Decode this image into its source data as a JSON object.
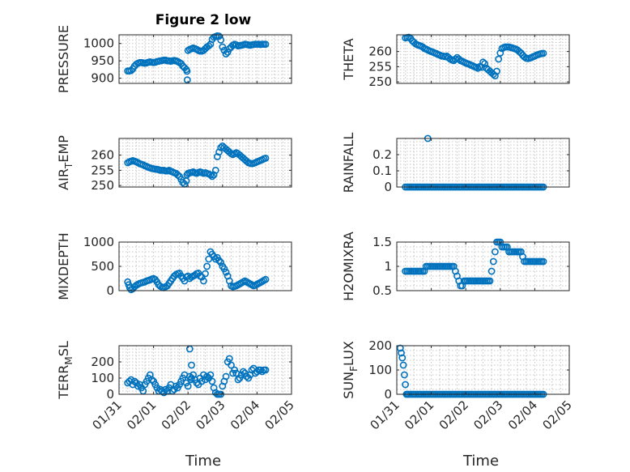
{
  "figure": {
    "title": "Figure 2 low"
  },
  "colors": {
    "marker": "#0072bd",
    "axis": "#262626",
    "grid": "#c6c6c6"
  },
  "x_axis": {
    "label": "Time",
    "ticks": [
      "01/31",
      "02/01",
      "02/02",
      "02/03",
      "02/04",
      "02/05"
    ],
    "tick_values": [
      0,
      1,
      2,
      3,
      4,
      5
    ],
    "range": [
      0,
      5
    ]
  },
  "chart_data": [
    {
      "type": "scatter",
      "ylabel": "PRESSURE",
      "ylim": [
        885,
        1025
      ],
      "yticks": [
        900,
        950,
        1000
      ],
      "grid": true,
      "x": [
        0.25,
        0.3,
        0.35,
        0.4,
        0.45,
        0.5,
        0.55,
        0.6,
        0.65,
        0.7,
        0.75,
        0.8,
        0.85,
        0.9,
        0.95,
        1.0,
        1.05,
        1.1,
        1.15,
        1.2,
        1.25,
        1.3,
        1.35,
        1.4,
        1.45,
        1.5,
        1.55,
        1.6,
        1.65,
        1.7,
        1.75,
        1.8,
        1.85,
        1.9,
        1.95,
        1.97,
        1.98,
        2.0,
        2.05,
        2.1,
        2.15,
        2.2,
        2.25,
        2.3,
        2.35,
        2.4,
        2.45,
        2.5,
        2.55,
        2.6,
        2.65,
        2.7,
        2.75,
        2.8,
        2.85,
        2.9,
        2.95,
        3.0,
        3.05,
        3.1,
        3.15,
        3.2,
        3.25,
        3.3,
        3.35,
        3.4,
        3.45,
        3.5,
        3.55,
        3.6,
        3.65,
        3.7,
        3.75,
        3.8,
        3.85,
        3.9,
        3.95,
        4.0,
        4.05,
        4.1,
        4.15,
        4.2,
        4.25
      ],
      "y": [
        921,
        921,
        922,
        927,
        935,
        940,
        943,
        945,
        945,
        944,
        943,
        944,
        946,
        947,
        946,
        945,
        946,
        948,
        949,
        950,
        951,
        952,
        952,
        950,
        950,
        949,
        950,
        951,
        950,
        948,
        945,
        942,
        935,
        930,
        925,
        920,
        895,
        980,
        983,
        985,
        987,
        985,
        983,
        980,
        978,
        978,
        980,
        985,
        990,
        993,
        998,
        1012,
        1018,
        1020,
        1022,
        1021,
        1010,
        990,
        980,
        970,
        975,
        985,
        990,
        995,
        998,
        996,
        993,
        994,
        995,
        996,
        998,
        997,
        996,
        995,
        996,
        997,
        998,
        998,
        998,
        997,
        998,
        998,
        998
      ],
      "y2": []
    },
    {
      "type": "scatter",
      "ylabel": "THETA",
      "ylim": [
        249.5,
        265.5
      ],
      "yticks": [
        250,
        255,
        260
      ],
      "grid": true,
      "x": [
        0.25,
        0.3,
        0.35,
        0.4,
        0.45,
        0.5,
        0.55,
        0.6,
        0.65,
        0.7,
        0.75,
        0.8,
        0.85,
        0.9,
        0.95,
        1.0,
        1.05,
        1.1,
        1.15,
        1.2,
        1.25,
        1.3,
        1.35,
        1.4,
        1.45,
        1.5,
        1.55,
        1.6,
        1.65,
        1.7,
        1.75,
        1.8,
        1.85,
        1.9,
        1.95,
        2.0,
        2.05,
        2.1,
        2.15,
        2.2,
        2.25,
        2.3,
        2.35,
        2.4,
        2.45,
        2.5,
        2.55,
        2.6,
        2.65,
        2.7,
        2.75,
        2.8,
        2.85,
        2.9,
        2.95,
        3.0,
        3.05,
        3.1,
        3.15,
        3.2,
        3.25,
        3.3,
        3.35,
        3.4,
        3.45,
        3.5,
        3.55,
        3.6,
        3.65,
        3.7,
        3.75,
        3.8,
        3.85,
        3.9,
        3.95,
        4.0,
        4.05,
        4.1,
        4.15,
        4.2,
        4.25
      ],
      "y": [
        264.5,
        264.6,
        264.7,
        264.3,
        263.5,
        263.0,
        262.5,
        262.2,
        262.0,
        261.8,
        261.5,
        261.0,
        260.8,
        260.5,
        260.2,
        260.0,
        259.8,
        259.5,
        259.3,
        259.0,
        258.8,
        258.5,
        258.5,
        258.3,
        258.5,
        258.0,
        257.5,
        257.2,
        257.0,
        257.5,
        258.0,
        257.5,
        257.0,
        256.8,
        256.5,
        256.2,
        256.0,
        255.8,
        255.5,
        255.3,
        255.0,
        254.8,
        254.5,
        255.0,
        254.8,
        256.5,
        256.0,
        254.5,
        254.0,
        253.5,
        253.0,
        252.5,
        252.0,
        253.5,
        257.5,
        259.5,
        261.0,
        261.3,
        261.5,
        261.5,
        261.5,
        261.3,
        261.2,
        261.0,
        260.8,
        260.5,
        260.0,
        259.5,
        258.8,
        258.2,
        257.8,
        257.7,
        257.8,
        258.0,
        258.3,
        258.5,
        258.8,
        259.0,
        259.2,
        259.3,
        259.4
      ],
      "y2": []
    },
    {
      "type": "scatter",
      "ylabel": "AIR_TEMP",
      "ylim": [
        249.5,
        265.5
      ],
      "yticks": [
        250,
        255,
        260
      ],
      "grid": true,
      "x": [
        0.25,
        0.3,
        0.35,
        0.4,
        0.45,
        0.5,
        0.55,
        0.6,
        0.65,
        0.7,
        0.75,
        0.8,
        0.85,
        0.9,
        0.95,
        1.0,
        1.05,
        1.1,
        1.15,
        1.2,
        1.25,
        1.3,
        1.35,
        1.4,
        1.45,
        1.5,
        1.55,
        1.6,
        1.65,
        1.7,
        1.75,
        1.8,
        1.85,
        1.9,
        1.95,
        1.97,
        2.0,
        2.05,
        2.1,
        2.15,
        2.2,
        2.25,
        2.3,
        2.35,
        2.4,
        2.45,
        2.5,
        2.55,
        2.6,
        2.65,
        2.7,
        2.75,
        2.8,
        2.85,
        2.9,
        2.95,
        3.0,
        3.05,
        3.1,
        3.15,
        3.2,
        3.25,
        3.3,
        3.35,
        3.4,
        3.45,
        3.5,
        3.55,
        3.6,
        3.65,
        3.7,
        3.75,
        3.8,
        3.85,
        3.9,
        3.95,
        4.0,
        4.05,
        4.1,
        4.15,
        4.2,
        4.25
      ],
      "y": [
        257.5,
        257.8,
        258.0,
        258.2,
        258.0,
        257.8,
        257.5,
        257.2,
        257.0,
        256.8,
        256.5,
        256.3,
        256.0,
        255.8,
        255.6,
        255.5,
        255.4,
        255.3,
        255.2,
        255.0,
        255.0,
        255.0,
        254.8,
        254.8,
        255.0,
        254.7,
        254.5,
        254.2,
        254.0,
        253.5,
        253.0,
        252.0,
        251.0,
        250.5,
        251.5,
        253.5,
        254.0,
        254.2,
        254.3,
        254.5,
        254.2,
        254.0,
        254.3,
        254.5,
        254.3,
        254.0,
        254.2,
        254.0,
        253.8,
        253.5,
        253.0,
        253.5,
        255.0,
        259.5,
        261.0,
        262.5,
        263.0,
        262.5,
        262.0,
        261.5,
        261.0,
        260.5,
        260.2,
        260.5,
        260.8,
        260.5,
        260.0,
        259.5,
        259.0,
        258.5,
        258.0,
        257.5,
        257.3,
        257.2,
        257.3,
        257.5,
        257.8,
        258.0,
        258.3,
        258.5,
        258.8,
        259.0
      ],
      "y2": []
    },
    {
      "type": "scatter",
      "ylabel": "RAINFALL",
      "ylim": [
        0,
        0.3
      ],
      "yticks": [
        0,
        0.1,
        0.2
      ],
      "grid": true,
      "x": [
        0.25,
        0.3,
        0.35,
        0.4,
        0.45,
        0.5,
        0.55,
        0.6,
        0.65,
        0.7,
        0.75,
        0.8,
        0.85,
        0.9,
        0.95,
        1.0,
        1.05,
        1.1,
        1.15,
        1.2,
        1.25,
        1.3,
        1.35,
        1.4,
        1.45,
        1.5,
        1.55,
        1.6,
        1.65,
        1.7,
        1.75,
        1.8,
        1.85,
        1.9,
        1.95,
        2.0,
        2.05,
        2.1,
        2.15,
        2.2,
        2.25,
        2.3,
        2.35,
        2.4,
        2.45,
        2.5,
        2.55,
        2.6,
        2.65,
        2.7,
        2.75,
        2.8,
        2.85,
        2.9,
        2.95,
        3.0,
        3.05,
        3.1,
        3.15,
        3.2,
        3.25,
        3.3,
        3.35,
        3.4,
        3.45,
        3.5,
        3.55,
        3.6,
        3.65,
        3.7,
        3.75,
        3.8,
        3.85,
        3.9,
        3.95,
        4.0,
        4.05,
        4.1,
        4.15,
        4.2,
        4.25,
        0.9
      ],
      "y": [
        0,
        0,
        0,
        0,
        0,
        0,
        0,
        0,
        0,
        0,
        0,
        0,
        0,
        0,
        0,
        0,
        0,
        0,
        0,
        0,
        0,
        0,
        0,
        0,
        0,
        0,
        0,
        0,
        0,
        0,
        0,
        0,
        0,
        0,
        0,
        0,
        0,
        0,
        0,
        0,
        0,
        0,
        0,
        0,
        0,
        0,
        0,
        0,
        0,
        0,
        0,
        0,
        0,
        0,
        0,
        0,
        0,
        0,
        0,
        0,
        0,
        0,
        0,
        0,
        0,
        0,
        0,
        0,
        0,
        0,
        0,
        0,
        0,
        0,
        0,
        0,
        0,
        0,
        0,
        0,
        0,
        0.3
      ],
      "y2": []
    },
    {
      "type": "scatter",
      "ylabel": "MIXDEPTH",
      "ylim": [
        0,
        1000
      ],
      "yticks": [
        0,
        500,
        1000
      ],
      "grid": true,
      "x": [
        0.25,
        0.28,
        0.31,
        0.35,
        0.4,
        0.45,
        0.5,
        0.55,
        0.6,
        0.65,
        0.7,
        0.75,
        0.8,
        0.85,
        0.9,
        0.95,
        1.0,
        1.05,
        1.1,
        1.15,
        1.2,
        1.25,
        1.3,
        1.35,
        1.4,
        1.45,
        1.5,
        1.55,
        1.6,
        1.65,
        1.7,
        1.75,
        1.8,
        1.85,
        1.9,
        1.95,
        2.0,
        2.05,
        2.1,
        2.15,
        2.2,
        2.25,
        2.3,
        2.35,
        2.4,
        2.45,
        2.5,
        2.55,
        2.6,
        2.65,
        2.7,
        2.75,
        2.8,
        2.85,
        2.9,
        2.95,
        3.0,
        3.05,
        3.1,
        3.15,
        3.2,
        3.25,
        3.3,
        3.35,
        3.4,
        3.45,
        3.5,
        3.55,
        3.6,
        3.65,
        3.7,
        3.75,
        3.8,
        3.85,
        3.9,
        3.95,
        4.0,
        4.05,
        4.1,
        4.15,
        4.2,
        4.25
      ],
      "y": [
        180,
        120,
        60,
        20,
        40,
        80,
        110,
        130,
        150,
        160,
        170,
        180,
        200,
        210,
        220,
        240,
        250,
        230,
        180,
        120,
        90,
        70,
        60,
        80,
        100,
        150,
        200,
        250,
        300,
        330,
        350,
        360,
        300,
        250,
        200,
        280,
        300,
        250,
        280,
        300,
        320,
        350,
        360,
        300,
        280,
        200,
        350,
        500,
        650,
        800,
        750,
        700,
        650,
        680,
        620,
        580,
        500,
        450,
        380,
        300,
        200,
        100,
        80,
        90,
        100,
        120,
        140,
        160,
        180,
        200,
        180,
        160,
        140,
        120,
        100,
        110,
        130,
        150,
        170,
        190,
        210,
        230
      ],
      "y2": []
    },
    {
      "type": "scatter",
      "ylabel": "H2OMIXRA",
      "ylim": [
        0.5,
        1.5
      ],
      "yticks": [
        0.5,
        1,
        1.5
      ],
      "grid": true,
      "x": [
        0.25,
        0.3,
        0.35,
        0.4,
        0.45,
        0.5,
        0.55,
        0.6,
        0.65,
        0.7,
        0.75,
        0.8,
        0.85,
        0.9,
        0.95,
        1.0,
        1.05,
        1.1,
        1.15,
        1.2,
        1.25,
        1.3,
        1.35,
        1.4,
        1.45,
        1.5,
        1.55,
        1.6,
        1.65,
        1.7,
        1.75,
        1.8,
        1.85,
        1.9,
        1.95,
        2.0,
        2.05,
        2.1,
        2.15,
        2.2,
        2.25,
        2.3,
        2.35,
        2.4,
        2.45,
        2.5,
        2.55,
        2.6,
        2.65,
        2.7,
        2.75,
        2.8,
        2.85,
        2.9,
        2.95,
        3.0,
        3.05,
        3.1,
        3.15,
        3.2,
        3.25,
        3.3,
        3.35,
        3.4,
        3.45,
        3.5,
        3.55,
        3.6,
        3.65,
        3.7,
        3.75,
        3.8,
        3.85,
        3.9,
        3.95,
        4.0,
        4.05,
        4.1,
        4.15,
        4.2,
        4.25
      ],
      "y": [
        0.9,
        0.9,
        0.9,
        0.9,
        0.9,
        0.9,
        0.9,
        0.9,
        0.9,
        0.9,
        0.9,
        0.9,
        1.0,
        1.0,
        1.0,
        1.0,
        1.0,
        1.0,
        1.0,
        1.0,
        1.0,
        1.0,
        1.0,
        1.0,
        1.0,
        1.0,
        1.0,
        1.0,
        1.0,
        0.9,
        0.8,
        0.7,
        0.6,
        0.6,
        0.7,
        0.7,
        0.7,
        0.7,
        0.7,
        0.7,
        0.7,
        0.7,
        0.7,
        0.7,
        0.7,
        0.7,
        0.7,
        0.7,
        0.7,
        0.7,
        0.9,
        1.1,
        1.3,
        1.5,
        1.5,
        1.5,
        1.4,
        1.4,
        1.4,
        1.4,
        1.3,
        1.3,
        1.3,
        1.3,
        1.3,
        1.3,
        1.3,
        1.3,
        1.2,
        1.1,
        1.1,
        1.1,
        1.1,
        1.1,
        1.1,
        1.1,
        1.1,
        1.1,
        1.1,
        1.1,
        1.1
      ],
      "y2": []
    },
    {
      "type": "scatter",
      "ylabel": "TERR_MSL",
      "ylim": [
        0,
        300
      ],
      "yticks": [
        0,
        100,
        200
      ],
      "grid": true,
      "x": [
        0.25,
        0.3,
        0.35,
        0.4,
        0.45,
        0.5,
        0.55,
        0.6,
        0.65,
        0.7,
        0.75,
        0.8,
        0.85,
        0.9,
        0.95,
        1.0,
        1.05,
        1.1,
        1.15,
        1.2,
        1.25,
        1.3,
        1.35,
        1.4,
        1.45,
        1.5,
        1.55,
        1.6,
        1.65,
        1.7,
        1.75,
        1.8,
        1.85,
        1.9,
        1.95,
        2.0,
        2.05,
        2.1,
        2.15,
        2.2,
        2.25,
        2.3,
        2.35,
        2.4,
        2.45,
        2.5,
        2.55,
        2.6,
        2.65,
        2.7,
        2.75,
        2.8,
        2.85,
        2.9,
        2.95,
        3.0,
        3.05,
        3.1,
        3.15,
        3.2,
        3.25,
        3.3,
        3.35,
        3.4,
        3.45,
        3.5,
        3.55,
        3.6,
        3.65,
        3.7,
        3.75,
        3.8,
        3.85,
        3.9,
        3.95,
        4.0,
        4.05,
        4.1,
        4.15,
        4.2,
        4.25,
        2.05,
        2.08,
        2.1
      ],
      "y": [
        70,
        80,
        90,
        60,
        80,
        70,
        50,
        60,
        40,
        20,
        60,
        80,
        100,
        120,
        90,
        80,
        60,
        40,
        20,
        30,
        20,
        10,
        30,
        20,
        40,
        60,
        20,
        30,
        50,
        40,
        60,
        80,
        100,
        120,
        70,
        50,
        280,
        180,
        120,
        90,
        70,
        60,
        100,
        80,
        120,
        90,
        110,
        100,
        120,
        80,
        40,
        10,
        0,
        0,
        0,
        50,
        80,
        110,
        200,
        220,
        180,
        130,
        150,
        130,
        90,
        100,
        120,
        140,
        130,
        110,
        100,
        120,
        150,
        160,
        130,
        140,
        150,
        150,
        140,
        150,
        150,
        110,
        90,
        100
      ],
      "y2": []
    },
    {
      "type": "scatter",
      "ylabel": "SUN_FLUX",
      "ylim": [
        0,
        200
      ],
      "yticks": [
        0,
        100,
        200
      ],
      "grid": true,
      "x": [
        0.1,
        0.13,
        0.16,
        0.19,
        0.22,
        0.25,
        0.28,
        0.31,
        0.35,
        0.4,
        0.45,
        0.5,
        0.55,
        0.6,
        0.65,
        0.7,
        0.75,
        0.8,
        0.85,
        0.9,
        0.95,
        1.0,
        1.05,
        1.1,
        1.15,
        1.2,
        1.25,
        1.3,
        1.35,
        1.4,
        1.45,
        1.5,
        1.55,
        1.6,
        1.65,
        1.7,
        1.75,
        1.8,
        1.85,
        1.9,
        1.95,
        2.0,
        2.05,
        2.1,
        2.15,
        2.2,
        2.25,
        2.3,
        2.35,
        2.4,
        2.45,
        2.5,
        2.55,
        2.6,
        2.65,
        2.7,
        2.75,
        2.8,
        2.85,
        2.9,
        2.95,
        3.0,
        3.05,
        3.1,
        3.15,
        3.2,
        3.25,
        3.3,
        3.35,
        3.4,
        3.45,
        3.5,
        3.55,
        3.6,
        3.65,
        3.7,
        3.75,
        3.8,
        3.85,
        3.9,
        3.95,
        4.0,
        4.05,
        4.1,
        4.15,
        4.2,
        4.25
      ],
      "y": [
        190,
        170,
        150,
        120,
        80,
        40,
        0,
        0,
        0,
        0,
        0,
        0,
        0,
        0,
        0,
        0,
        0,
        0,
        0,
        0,
        0,
        0,
        0,
        0,
        0,
        0,
        0,
        0,
        0,
        0,
        0,
        0,
        0,
        0,
        0,
        0,
        0,
        0,
        0,
        0,
        0,
        0,
        0,
        0,
        0,
        0,
        0,
        0,
        0,
        0,
        0,
        0,
        0,
        0,
        0,
        0,
        0,
        0,
        0,
        0,
        0,
        0,
        0,
        0,
        0,
        0,
        0,
        0,
        0,
        0,
        0,
        0,
        0,
        0,
        0,
        0,
        0,
        0,
        0,
        0,
        0,
        0,
        0,
        0,
        0,
        0,
        0
      ],
      "y2": []
    }
  ]
}
